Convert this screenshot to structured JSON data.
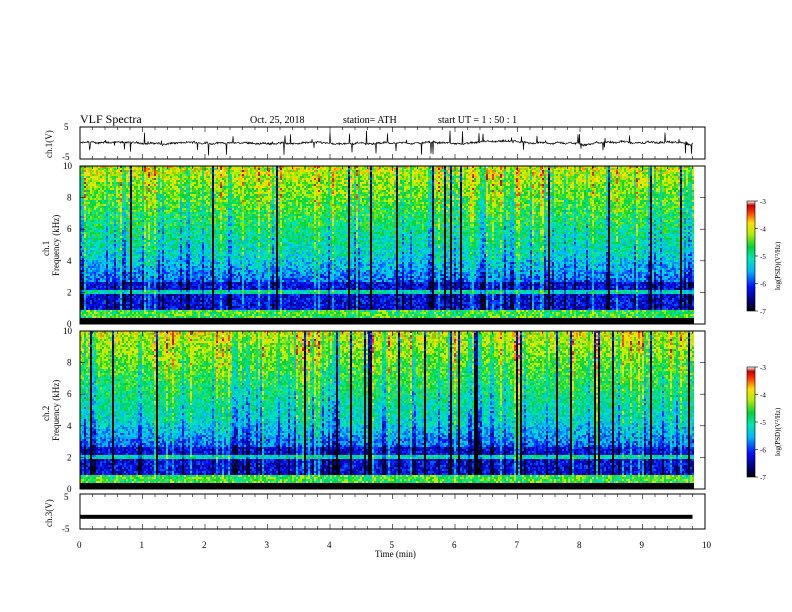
{
  "header": {
    "title": "VLF  Spectra",
    "date": "Oct. 25, 2018",
    "station": "station= ATH",
    "start": "start  UT  =    1  : 50 : 1"
  },
  "chart_data": [
    {
      "id": "ch1-waveform",
      "type": "line",
      "ylabel": "ch.1(V)",
      "ylim": [
        -5,
        5
      ],
      "yticks": [
        5,
        -5
      ],
      "xlim": [
        0,
        10
      ],
      "note_series": "continuous noisy waveform, baseline ~0 V, frequent spikes to about ±4 V, data 0–9.8 min",
      "data_end_min": 9.8
    },
    {
      "id": "ch1-spectrogram",
      "type": "heatmap",
      "ylabel": "Frequency  (kHz)",
      "channel_label": "ch.1",
      "ylim": [
        0,
        10
      ],
      "yticks": [
        0,
        2,
        4,
        6,
        8,
        10
      ],
      "xlim": [
        0,
        10
      ],
      "data_end_min": 9.8,
      "colorbar": {
        "label": "log(PSD)(V²/Hz)",
        "range": [
          -7,
          -3
        ],
        "ticks": [
          -3,
          -4,
          -5,
          -6,
          -7
        ]
      }
    },
    {
      "id": "ch2-spectrogram",
      "type": "heatmap",
      "ylabel": "Frequency  (kHz)",
      "channel_label": "ch.2",
      "ylim": [
        0,
        10
      ],
      "yticks": [
        0,
        2,
        4,
        6,
        8,
        10
      ],
      "xlim": [
        0,
        10
      ],
      "data_end_min": 9.8,
      "colorbar": {
        "label": "log(PSD)(V²/Hz)",
        "range": [
          -7,
          -3
        ],
        "ticks": [
          -3,
          -4,
          -5,
          -6,
          -7
        ]
      }
    },
    {
      "id": "ch3-waveform",
      "type": "line",
      "ylabel": "ch.3(V)",
      "ylim": [
        -5,
        5
      ],
      "yticks": [
        5,
        -5
      ],
      "xlim": [
        0,
        10
      ],
      "constant_value": -1.5,
      "data_end_min": 9.8
    }
  ],
  "xaxis": {
    "label": "Time  (min)",
    "ticks": [
      0,
      1,
      2,
      3,
      4,
      5,
      6,
      7,
      8,
      9,
      10
    ]
  }
}
